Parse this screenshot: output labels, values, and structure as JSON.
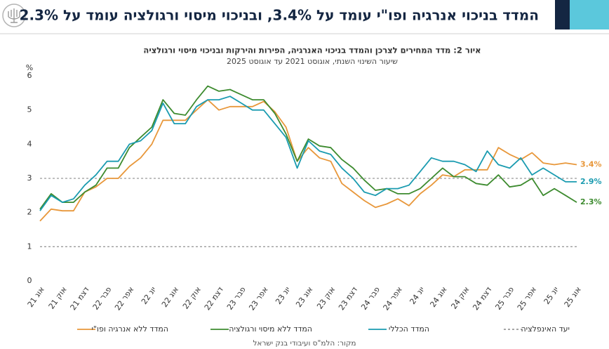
{
  "header": {
    "title": "המדד בניכוי אנרגיה ופו\"י עומד על 3.4%, ובניכוי מיסוי ורגולציה עומד על 2.3%"
  },
  "chart_data": {
    "type": "line",
    "title": "איור 2: מדד המחירים לצרכן והמדד בניכוי האנרגיה, הפירות והירקות ובניכוי מיסוי ורגולציה",
    "subtitle": "שיעור השינוי השנתי, אוגוסט 2021 עד אוגוסט 2025",
    "y_label": "%",
    "source": "מקור: הלמ\"ס ועיבודי בנק ישראל",
    "categories": [
      "אוג 21",
      null,
      "אוק 21",
      null,
      "דצמ 21",
      null,
      "פבר 22",
      null,
      "אפר 22",
      null,
      "יונ 22",
      null,
      "אוג 22",
      null,
      "אוק 22",
      null,
      "דצמ 22",
      null,
      "פבר 23",
      null,
      "אפר 23",
      null,
      "יונ 23",
      null,
      "אוג 23",
      null,
      "אוק 23",
      null,
      "דצמ 23",
      null,
      "פבר 24",
      null,
      "אפר 24",
      null,
      "יונ 24",
      null,
      "אוג 24",
      null,
      "אוק 24",
      null,
      "דצמ 24",
      null,
      "פבר 25",
      null,
      "אפר 25",
      null,
      "יונ 25",
      null,
      "אוג 25"
    ],
    "series": [
      {
        "name": "המדד ללא אנרגיה ופו\"י",
        "color": "#e8973a",
        "values": [
          1.75,
          2.1,
          2.05,
          2.05,
          2.6,
          2.75,
          3.0,
          3.0,
          3.35,
          3.6,
          4.0,
          4.7,
          4.7,
          4.7,
          5.0,
          5.3,
          5.0,
          5.1,
          5.1,
          5.1,
          5.25,
          4.95,
          4.5,
          3.5,
          3.9,
          3.6,
          3.5,
          2.85,
          2.6,
          2.35,
          2.15,
          2.25,
          2.4,
          2.2,
          2.55,
          2.8,
          3.1,
          3.05,
          3.25,
          3.25,
          3.25,
          3.9,
          3.7,
          3.55,
          3.75,
          3.45,
          3.4,
          3.45,
          3.4
        ],
        "value_labels": [
          null,
          null,
          null,
          null,
          null,
          null,
          null,
          null,
          null,
          null,
          null,
          null,
          null,
          null,
          null,
          null,
          null,
          null,
          null,
          null,
          null,
          null,
          null,
          null,
          null,
          null,
          null,
          null,
          null,
          null,
          null,
          null,
          null,
          null,
          null,
          null,
          null,
          null,
          null,
          null,
          null,
          null,
          null,
          null,
          null,
          null,
          null,
          null,
          "3.4%"
        ]
      },
      {
        "name": "המדד ללא מיסוי ורגולציה",
        "color": "#3d8b2f",
        "values": [
          2.1,
          2.55,
          2.3,
          2.3,
          2.6,
          2.8,
          3.3,
          3.3,
          3.9,
          4.2,
          4.5,
          5.3,
          4.9,
          4.85,
          5.3,
          5.7,
          5.55,
          5.6,
          5.45,
          5.3,
          5.3,
          4.9,
          4.3,
          3.5,
          4.15,
          3.95,
          3.9,
          3.55,
          3.3,
          2.95,
          2.65,
          2.7,
          2.55,
          2.55,
          2.7,
          3.0,
          3.3,
          3.05,
          3.05,
          2.85,
          2.8,
          3.1,
          2.75,
          2.8,
          3.0,
          2.5,
          2.7,
          2.5,
          2.3
        ],
        "value_labels": [
          null,
          null,
          null,
          null,
          null,
          null,
          null,
          null,
          null,
          null,
          null,
          null,
          null,
          null,
          null,
          null,
          null,
          null,
          null,
          null,
          null,
          null,
          null,
          null,
          null,
          null,
          null,
          null,
          null,
          null,
          null,
          null,
          null,
          null,
          null,
          null,
          null,
          null,
          null,
          null,
          null,
          null,
          null,
          null,
          null,
          null,
          null,
          null,
          "2.3%"
        ]
      },
      {
        "name": "המדד הכללי",
        "color": "#1a9bb0",
        "values": [
          2.05,
          2.5,
          2.3,
          2.4,
          2.8,
          3.1,
          3.5,
          3.5,
          4.0,
          4.1,
          4.4,
          5.2,
          4.6,
          4.6,
          5.1,
          5.3,
          5.3,
          5.4,
          5.2,
          5.0,
          5.0,
          4.6,
          4.2,
          3.3,
          4.1,
          3.8,
          3.7,
          3.3,
          3.0,
          2.6,
          2.5,
          2.7,
          2.7,
          2.8,
          3.2,
          3.6,
          3.5,
          3.5,
          3.4,
          3.2,
          3.8,
          3.4,
          3.3,
          3.6,
          3.1,
          3.3,
          3.1,
          2.9,
          2.9
        ],
        "value_labels": [
          null,
          null,
          null,
          null,
          null,
          null,
          null,
          null,
          null,
          null,
          null,
          null,
          null,
          null,
          null,
          null,
          null,
          null,
          null,
          null,
          null,
          null,
          null,
          null,
          null,
          null,
          null,
          null,
          null,
          null,
          null,
          null,
          null,
          null,
          null,
          null,
          null,
          null,
          null,
          null,
          null,
          null,
          null,
          null,
          null,
          null,
          null,
          null,
          "2.9%"
        ]
      }
    ],
    "target": {
      "name": "יעד האינפלציה",
      "values": [
        1,
        3
      ],
      "color": "#9a9a9a"
    },
    "ylim": [
      0,
      6
    ],
    "yticks": [
      0,
      1,
      2,
      3,
      4,
      5,
      6
    ],
    "grid": false
  }
}
